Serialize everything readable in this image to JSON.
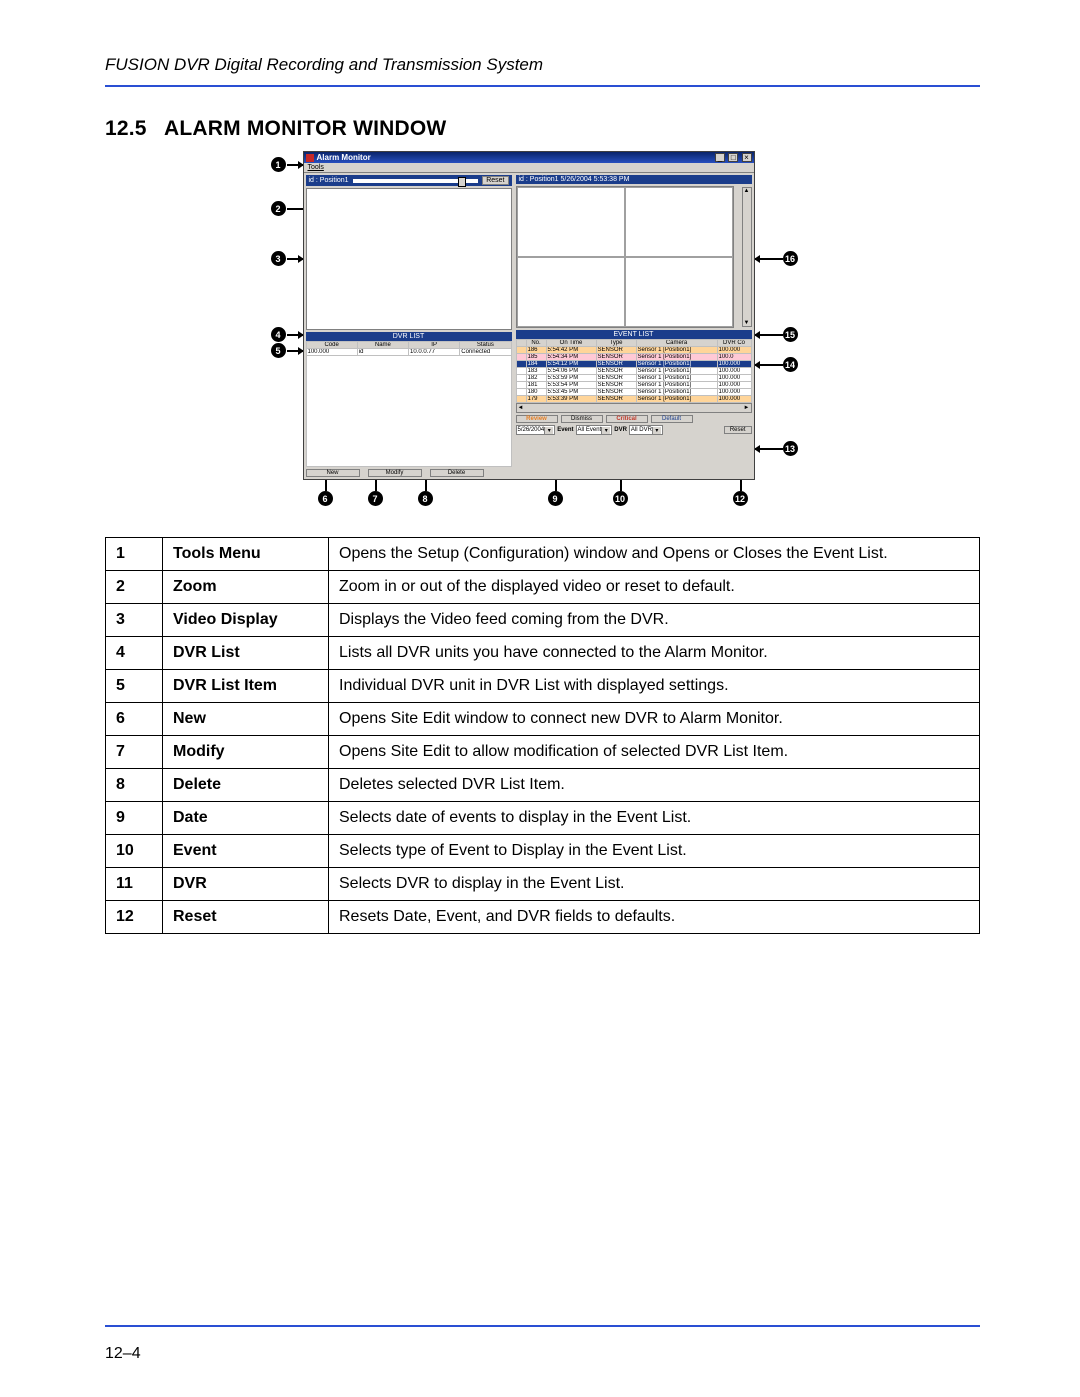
{
  "doc": {
    "header": "FUSION DVR Digital Recording and Transmission System",
    "section_no": "12.5",
    "section_title": "ALARM MONITOR WINDOW",
    "page_number": "12–4",
    "rule_color": "#2a4fd3"
  },
  "window": {
    "title": "Alarm Monitor",
    "menu_tools": "Tools",
    "zoom_label": "id : Position1",
    "zoom_reset": "Reset",
    "right_info": "id : Position1   5/26/2004 5:53:38 PM",
    "dvr_list_header": "DVR LIST",
    "dvr_columns": [
      "Code",
      "Name",
      "IP",
      "Status"
    ],
    "dvr_rows": [
      [
        "100.000",
        "id",
        "10.0.0.77",
        "Connected"
      ]
    ],
    "event_list_header": "EVENT LIST",
    "event_columns": [
      "No.",
      "On Time",
      "Type",
      "Camera",
      "DVR Co"
    ],
    "event_rows": [
      {
        "cells": [
          "186",
          "5:54:42 PM",
          "SENSOR",
          "Sensor 1 [Position1]",
          "100.000"
        ],
        "style": "orange"
      },
      {
        "cells": [
          "185",
          "5:54:34 PM",
          "SENSOR",
          "Sensor 1 [Position1]",
          "100.0"
        ],
        "style": "pink"
      },
      {
        "cells": [
          "184",
          "5:54:12 PM",
          "SENSOR",
          "Sensor 1 [Position1]",
          "100.000"
        ],
        "style": "sel"
      },
      {
        "cells": [
          "183",
          "5:54:06 PM",
          "SENSOR",
          "Sensor 1 [Position1]",
          "100.000"
        ],
        "style": ""
      },
      {
        "cells": [
          "182",
          "5:53:59 PM",
          "SENSOR",
          "Sensor 1 [Position1]",
          "100.000"
        ],
        "style": ""
      },
      {
        "cells": [
          "181",
          "5:53:54 PM",
          "SENSOR",
          "Sensor 1 [Position1]",
          "100.000"
        ],
        "style": ""
      },
      {
        "cells": [
          "180",
          "5:53:45 PM",
          "SENSOR",
          "Sensor 1 [Position1]",
          "100.000"
        ],
        "style": ""
      },
      {
        "cells": [
          "179",
          "5:53:39 PM",
          "SENSOR",
          "Sensor 1 [Position1]",
          "100.000"
        ],
        "style": "orange"
      }
    ],
    "toggles": {
      "review": "Review",
      "dismiss": "Dismiss",
      "critical": "Critical",
      "default": "Default"
    },
    "filters": {
      "date": "5/26/2004",
      "event_label": "Event",
      "event_value": "All Event",
      "dvr_label": "DVR",
      "dvr_value": "All DVR",
      "reset": "Reset"
    },
    "left_buttons": {
      "new": "New",
      "modify": "Modify",
      "delete": "Delete"
    }
  },
  "callouts": {
    "1": "1",
    "2": "2",
    "3": "3",
    "4": "4",
    "5": "5",
    "6": "6",
    "7": "7",
    "8": "8",
    "9": "9",
    "10": "10",
    "12": "12",
    "13": "13",
    "14": "14",
    "15": "15",
    "16": "16"
  },
  "desc": [
    {
      "n": "1",
      "name": "Tools Menu",
      "text": "Opens the Setup (Configuration) window and Opens or Closes the Event List."
    },
    {
      "n": "2",
      "name": "Zoom",
      "text": "Zoom in or out of the displayed video or reset to default."
    },
    {
      "n": "3",
      "name": "Video Display",
      "text": "Displays the Video feed coming from the DVR."
    },
    {
      "n": "4",
      "name": "DVR List",
      "text": "Lists all DVR units you have connected to the Alarm Monitor."
    },
    {
      "n": "5",
      "name": "DVR List Item",
      "text": "Individual DVR unit in DVR List with displayed settings."
    },
    {
      "n": "6",
      "name": "New",
      "text": "Opens Site Edit window to connect new DVR to Alarm Monitor."
    },
    {
      "n": "7",
      "name": "Modify",
      "text": "Opens Site Edit to allow modification of selected DVR List Item."
    },
    {
      "n": "8",
      "name": "Delete",
      "text": "Deletes selected DVR List Item."
    },
    {
      "n": "9",
      "name": "Date",
      "text": "Selects date of events to display in the Event List."
    },
    {
      "n": "10",
      "name": "Event",
      "text": "Selects type of Event to Display in the Event List."
    },
    {
      "n": "11",
      "name": "DVR",
      "text": "Selects DVR to display in the Event List."
    },
    {
      "n": "12",
      "name": "Reset",
      "text": "Resets Date, Event, and DVR fields to defaults."
    }
  ]
}
